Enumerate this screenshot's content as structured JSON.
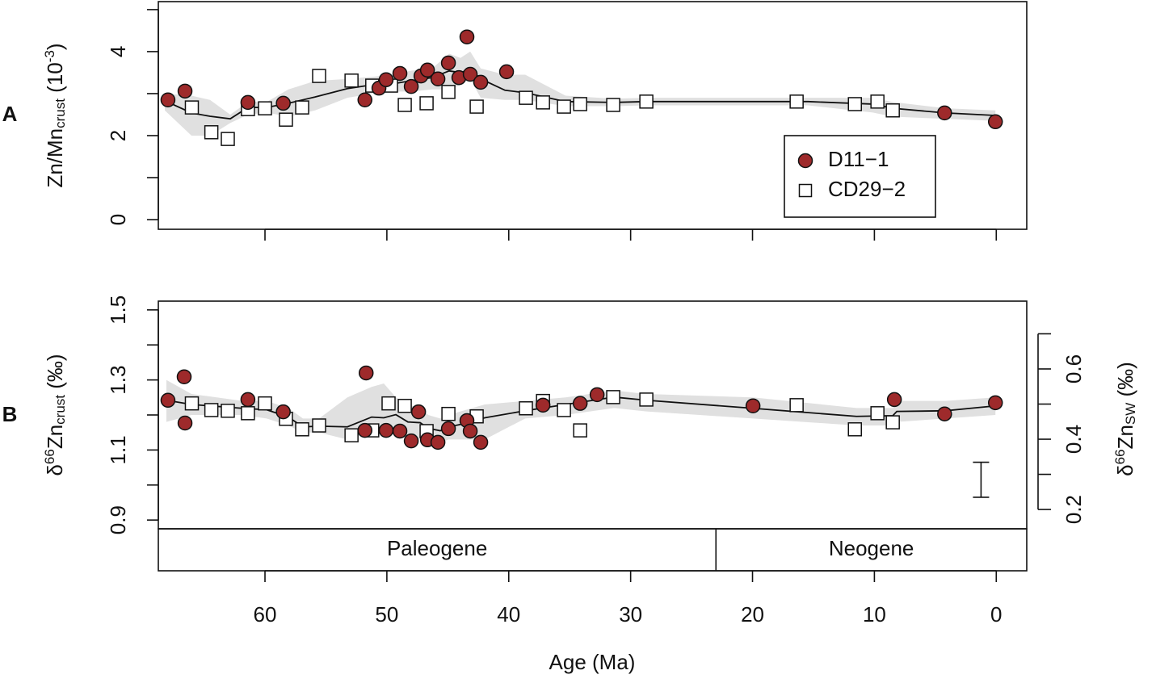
{
  "chart_data": [
    {
      "type": "scatter",
      "panel": "A",
      "ylabel": [
        "Zn/Mn",
        "crust",
        " (10",
        "-3",
        ")"
      ],
      "xlim": [
        68.75,
        -2.5
      ],
      "xticks": [
        0,
        10,
        20,
        30,
        40,
        50,
        60
      ],
      "ylim": [
        -0.23,
        5.19
      ],
      "yticks": [
        0,
        2,
        4
      ],
      "yminor": [
        1,
        3,
        5
      ],
      "legend": "bottom-right",
      "series": [
        {
          "name": "D11−1",
          "marker": "circle",
          "color": "#9e2a2b",
          "x": [
            67.96,
            66.56,
            61.4,
            58.5,
            51.8,
            50.65,
            50.06,
            48.93,
            48.0,
            47.2,
            46.67,
            45.81,
            44.95,
            44.09,
            43.43,
            43.16,
            42.3,
            40.18,
            4.24,
            0.07
          ],
          "values": [
            2.85,
            3.06,
            2.79,
            2.77,
            2.85,
            3.13,
            3.33,
            3.48,
            3.17,
            3.42,
            3.56,
            3.35,
            3.73,
            3.38,
            4.35,
            3.46,
            3.27,
            3.52,
            2.54,
            2.33
          ]
        },
        {
          "name": "CD29−2",
          "marker": "square",
          "color": "#ffffff",
          "x": [
            66.0,
            64.4,
            63.05,
            61.4,
            60.0,
            58.28,
            56.95,
            55.56,
            52.9,
            51.2,
            49.66,
            48.53,
            46.74,
            44.95,
            42.63,
            38.59,
            37.19,
            35.47,
            34.14,
            31.43,
            28.71,
            16.38,
            11.6,
            9.75,
            8.49
          ],
          "values": [
            2.67,
            2.08,
            1.92,
            2.63,
            2.65,
            2.38,
            2.67,
            3.42,
            3.31,
            3.19,
            3.19,
            2.73,
            2.77,
            3.04,
            2.69,
            2.9,
            2.79,
            2.69,
            2.75,
            2.73,
            2.81,
            2.81,
            2.75,
            2.81,
            2.6
          ]
        }
      ],
      "smooth": {
        "color": "#e0e0e0",
        "x": [
          68.22,
          66.03,
          64.51,
          62.85,
          61.4,
          59.87,
          58.08,
          55.89,
          53.24,
          51.18,
          49.59,
          47.94,
          46.28,
          44.89,
          43.96,
          43.16,
          42.3,
          40.31,
          38.65,
          35.34,
          31.36,
          28.71,
          15.45,
          10.14,
          8.49,
          4.18,
          0.07
        ],
        "values": [
          2.83,
          2.54,
          2.46,
          2.4,
          2.67,
          2.67,
          2.77,
          2.92,
          3.12,
          3.21,
          3.23,
          3.31,
          3.38,
          3.54,
          3.5,
          3.58,
          3.35,
          3.08,
          3.02,
          2.81,
          2.79,
          2.81,
          2.81,
          2.75,
          2.65,
          2.54,
          2.48
        ],
        "lower": [
          2.6,
          2.0,
          2.0,
          2.3,
          2.5,
          2.55,
          2.45,
          2.6,
          2.9,
          3.0,
          3.05,
          3.05,
          3.1,
          3.1,
          3.2,
          3.35,
          2.9,
          2.85,
          2.85,
          2.7,
          2.7,
          2.72,
          2.72,
          2.55,
          2.45,
          2.4,
          2.35
        ],
        "upper": [
          3.0,
          2.95,
          2.85,
          2.5,
          2.8,
          2.8,
          3.1,
          3.3,
          3.35,
          3.4,
          3.45,
          3.55,
          3.6,
          3.95,
          3.85,
          4.0,
          3.6,
          3.45,
          3.45,
          2.95,
          2.88,
          2.9,
          2.9,
          2.9,
          2.8,
          2.65,
          2.6
        ]
      }
    },
    {
      "type": "scatter",
      "panel": "B",
      "ylabel": [
        "δ",
        "66",
        "Zn",
        "crust",
        " (‰)"
      ],
      "y2label": [
        "δ",
        "66",
        "Zn",
        "SW",
        " (‰)"
      ],
      "xlabel": "Age (Ma)",
      "xlim": [
        68.75,
        -2.5
      ],
      "xticks": [
        0,
        10,
        20,
        30,
        40,
        50,
        60
      ],
      "ylim": [
        0.875,
        1.525
      ],
      "yticks": [
        0.9,
        1.1,
        1.3,
        1.5
      ],
      "yminor": [
        1.0,
        1.2,
        1.4
      ],
      "y2lim": [
        0.145,
        0.793
      ],
      "y2ticks": [
        0.2,
        0.4,
        0.6
      ],
      "y2minor": [
        0.3,
        0.5,
        0.7
      ],
      "periods": [
        "Paleogene",
        "Neogene"
      ],
      "period_boundaries": [
        23
      ],
      "error_bar": {
        "x": 1.25,
        "value": 1.015,
        "error": 0.05
      },
      "series": [
        {
          "name": "D11−1",
          "marker": "circle",
          "color": "#9e2a2b",
          "x": [
            67.96,
            66.63,
            66.56,
            61.4,
            58.5,
            51.8,
            51.7,
            50.06,
            48.93,
            48.0,
            47.4,
            46.67,
            45.81,
            44.95,
            43.43,
            43.16,
            42.3,
            37.19,
            34.14,
            32.75,
            19.96,
            8.36,
            4.24,
            0.07
          ],
          "values": [
            1.242,
            1.309,
            1.177,
            1.244,
            1.209,
            1.156,
            1.32,
            1.156,
            1.154,
            1.126,
            1.209,
            1.129,
            1.122,
            1.161,
            1.184,
            1.154,
            1.122,
            1.228,
            1.233,
            1.258,
            1.226,
            1.244,
            1.203,
            1.235
          ]
        },
        {
          "name": "CD29−2",
          "marker": "square",
          "color": "#ffffff",
          "x": [
            66.0,
            64.4,
            63.05,
            61.4,
            60.0,
            58.28,
            56.95,
            55.56,
            52.9,
            51.2,
            49.86,
            48.53,
            46.74,
            44.95,
            42.63,
            38.59,
            37.19,
            35.47,
            34.14,
            31.43,
            28.71,
            16.38,
            11.6,
            9.75,
            8.49
          ],
          "values": [
            1.233,
            1.214,
            1.212,
            1.205,
            1.233,
            1.189,
            1.159,
            1.17,
            1.142,
            1.156,
            1.233,
            1.226,
            1.154,
            1.203,
            1.196,
            1.219,
            1.24,
            1.214,
            1.156,
            1.251,
            1.244,
            1.228,
            1.159,
            1.205,
            1.179
          ]
        }
      ],
      "smooth": {
        "color": "#e0e0e0",
        "x": [
          68.09,
          66.03,
          61.86,
          59.87,
          58.08,
          56.89,
          55.56,
          53.24,
          51.25,
          50.25,
          49.26,
          48.27,
          47.27,
          46.61,
          45.62,
          44.95,
          43.96,
          41.97,
          38.65,
          35.34,
          31.36,
          28.71,
          19.96,
          11.47,
          8.49,
          8.16,
          4.18,
          0.07
        ],
        "values": [
          1.242,
          1.23,
          1.219,
          1.215,
          1.194,
          1.166,
          1.168,
          1.166,
          1.194,
          1.192,
          1.201,
          1.18,
          1.178,
          1.162,
          1.155,
          1.166,
          1.173,
          1.192,
          1.212,
          1.23,
          1.251,
          1.242,
          1.219,
          1.196,
          1.198,
          1.21,
          1.212,
          1.226
        ],
        "lower": [
          1.18,
          1.2,
          1.2,
          1.19,
          1.17,
          1.15,
          1.15,
          1.13,
          1.15,
          1.15,
          1.15,
          1.14,
          1.13,
          1.13,
          1.12,
          1.13,
          1.13,
          1.13,
          1.19,
          1.2,
          1.22,
          1.21,
          1.19,
          1.17,
          1.17,
          1.18,
          1.19,
          1.2
        ],
        "upper": [
          1.3,
          1.26,
          1.24,
          1.24,
          1.22,
          1.19,
          1.19,
          1.25,
          1.28,
          1.29,
          1.25,
          1.23,
          1.22,
          1.2,
          1.19,
          1.2,
          1.21,
          1.23,
          1.24,
          1.25,
          1.27,
          1.26,
          1.25,
          1.22,
          1.22,
          1.24,
          1.24,
          1.25
        ]
      }
    }
  ]
}
